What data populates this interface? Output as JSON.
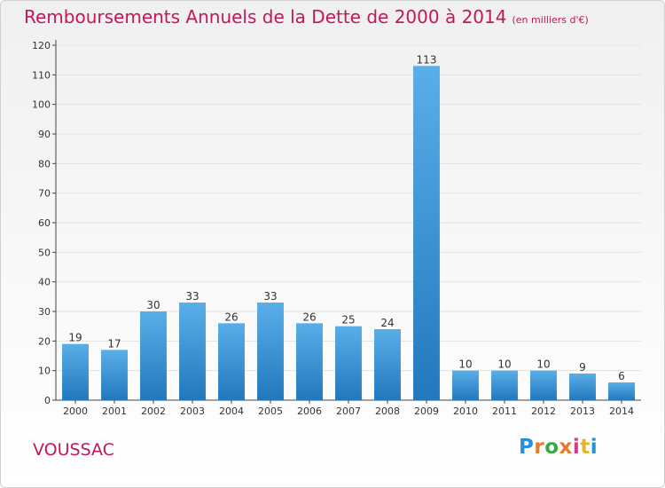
{
  "header": {
    "title": "Remboursements Annuels de la Dette de 2000 à 2014",
    "unit": "(en milliers d'€)"
  },
  "footer": {
    "commune": "VOUSSAC",
    "logo_text": "Proxiti"
  },
  "colors": {
    "title": "#c2185b",
    "bar_top": "#5aaee8",
    "bar_bottom": "#2278bd",
    "grid": "#e2e2e2",
    "axis": "#444444"
  },
  "chart_data": {
    "type": "bar",
    "title": "Remboursements Annuels de la Dette de 2000 à 2014",
    "xlabel": "",
    "ylabel": "",
    "categories": [
      "2000",
      "2001",
      "2002",
      "2003",
      "2004",
      "2005",
      "2006",
      "2007",
      "2008",
      "2009",
      "2010",
      "2011",
      "2012",
      "2013",
      "2014"
    ],
    "values": [
      19,
      17,
      30,
      33,
      26,
      33,
      26,
      25,
      24,
      113,
      10,
      10,
      10,
      9,
      6
    ],
    "ylim": [
      0,
      120
    ],
    "yticks": [
      0,
      10,
      20,
      30,
      40,
      50,
      60,
      70,
      80,
      90,
      100,
      110,
      120
    ],
    "grid": true,
    "data_labels": true
  }
}
